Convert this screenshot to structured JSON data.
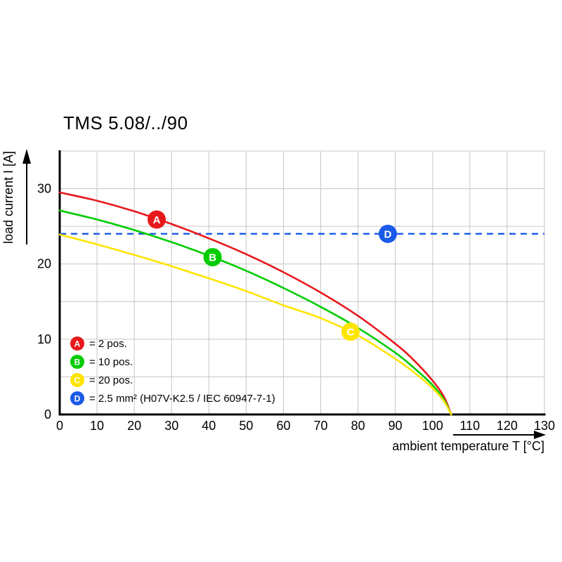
{
  "chart_data": {
    "type": "line",
    "title": "TMS 5.08/../90",
    "xlabel": "ambient temperature T [°C]",
    "ylabel": "load current I [A]",
    "xlim": [
      0,
      130
    ],
    "ylim": [
      0,
      35
    ],
    "x_ticks": [
      0,
      10,
      20,
      30,
      40,
      50,
      60,
      70,
      80,
      90,
      100,
      110,
      120,
      130
    ],
    "y_ticks": [
      0,
      10,
      20,
      30
    ],
    "grid": {
      "x_step": 10,
      "y_step": 5,
      "color": "#c6c6c6"
    },
    "axis_color": "#000000",
    "series": [
      {
        "name": "A",
        "legend": "= 2 pos.",
        "color": "#e8191c",
        "marker": {
          "x": 26,
          "y": 25.9
        },
        "points": [
          [
            0,
            29.5
          ],
          [
            10,
            28.4
          ],
          [
            20,
            27.0
          ],
          [
            30,
            25.3
          ],
          [
            40,
            23.4
          ],
          [
            50,
            21.3
          ],
          [
            60,
            18.9
          ],
          [
            70,
            16.2
          ],
          [
            80,
            13.1
          ],
          [
            90,
            9.4
          ],
          [
            95,
            7.2
          ],
          [
            100,
            4.5
          ],
          [
            103,
            2.4
          ],
          [
            105,
            0
          ]
        ]
      },
      {
        "name": "B",
        "legend": "= 10 pos.",
        "color": "#00cc00",
        "marker": {
          "x": 41,
          "y": 20.9
        },
        "points": [
          [
            0,
            27.1
          ],
          [
            10,
            25.9
          ],
          [
            20,
            24.5
          ],
          [
            30,
            22.9
          ],
          [
            40,
            21.1
          ],
          [
            50,
            19.1
          ],
          [
            60,
            16.8
          ],
          [
            70,
            14.3
          ],
          [
            80,
            11.5
          ],
          [
            90,
            8.2
          ],
          [
            95,
            6.2
          ],
          [
            100,
            3.9
          ],
          [
            103,
            2.0
          ],
          [
            105,
            0
          ]
        ]
      },
      {
        "name": "C",
        "legend": "= 20 pos.",
        "color": "#ffe400",
        "marker": {
          "x": 78,
          "y": 11.0
        },
        "points": [
          [
            0,
            23.9
          ],
          [
            10,
            22.6
          ],
          [
            20,
            21.2
          ],
          [
            30,
            19.7
          ],
          [
            40,
            18.1
          ],
          [
            50,
            16.4
          ],
          [
            60,
            14.5
          ],
          [
            70,
            12.8
          ],
          [
            80,
            10.5
          ],
          [
            90,
            7.4
          ],
          [
            95,
            5.6
          ],
          [
            100,
            3.5
          ],
          [
            103,
            1.8
          ],
          [
            105,
            0
          ]
        ]
      }
    ],
    "reference_line": {
      "name": "D",
      "legend": "= 2.5 mm² (H07V-K2.5 / IEC 60947-7-1)",
      "color": "#1a5ae8",
      "style": "dashed",
      "y": 24,
      "marker": {
        "x": 88,
        "y": 24
      }
    }
  }
}
